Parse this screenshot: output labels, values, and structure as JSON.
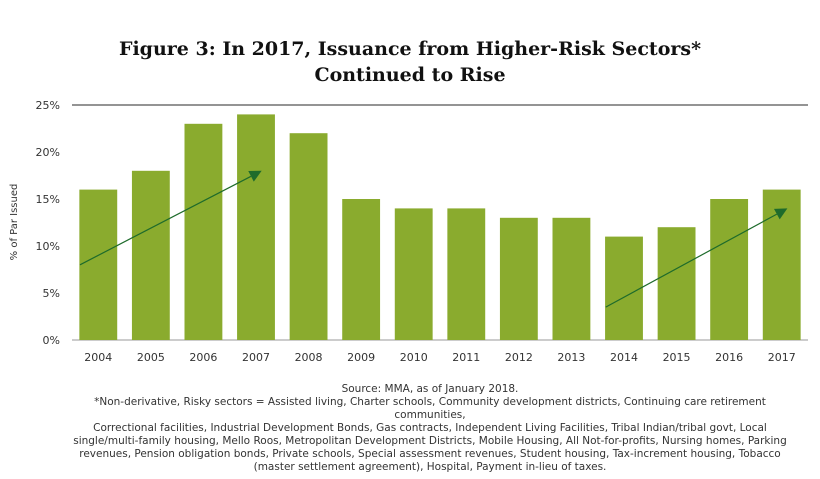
{
  "title": {
    "line1": "Figure 3: In 2017, Issuance from Higher-Risk Sectors*",
    "line2": "Continued to Rise"
  },
  "chart_data": {
    "type": "bar",
    "categories": [
      "2004",
      "2005",
      "2006",
      "2007",
      "2008",
      "2009",
      "2010",
      "2011",
      "2012",
      "2013",
      "2014",
      "2015",
      "2016",
      "2017"
    ],
    "values": [
      16,
      18,
      23,
      24,
      22,
      15,
      14,
      14,
      13,
      13,
      11,
      12,
      15,
      16
    ],
    "ylabel": "% of Par Issued",
    "ylim": [
      0,
      25
    ],
    "yticks": [
      "0%",
      "5%",
      "10%",
      "15%",
      "20%",
      "25%"
    ],
    "bar_color": "#8aab2e",
    "arrow_color": "#1e6b2b",
    "trend_arrows": [
      {
        "from": {
          "x": "2004",
          "y": 8
        },
        "to": {
          "x": "2007",
          "y": 18
        }
      },
      {
        "from": {
          "x": "2014",
          "y": 3.5
        },
        "to": {
          "x": "2017",
          "y": 14
        }
      }
    ]
  },
  "footer": {
    "source": "Source: MMA, as of January 2018.",
    "note_lines": [
      "*Non-derivative, Risky sectors = Assisted living, Charter schools, Community development districts, Continuing care retirement communities,",
      "Correctional facilities, Industrial Development Bonds, Gas contracts, Independent Living Facilities, Tribal Indian/tribal govt, Local",
      "single/multi-family housing, Mello Roos, Metropolitan Development Districts, Mobile Housing, All Not-for-profits, Nursing homes, Parking",
      "revenues, Pension obligation bonds, Private schools, Special assessment revenues, Student housing, Tax-increment housing, Tobacco",
      "(master settlement agreement), Hospital, Payment in-lieu of taxes."
    ]
  }
}
